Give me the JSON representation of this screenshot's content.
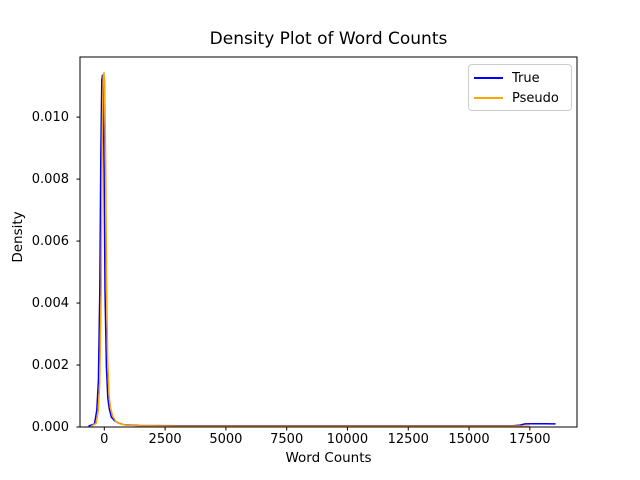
{
  "figure": {
    "background": "#ffffff",
    "spine_color": "#000000",
    "tick_color": "#000000"
  },
  "chart_data": {
    "type": "line",
    "title": "Density Plot of Word Counts",
    "xlabel": "Word Counts",
    "ylabel": "Density",
    "xlim": [
      -1000,
      19440
    ],
    "ylim": [
      0,
      0.01194
    ],
    "grid": false,
    "legend": {
      "position": "upper right",
      "border_color": "#cccccc"
    },
    "xticks": {
      "values": [
        0,
        2500,
        5000,
        7500,
        10000,
        12500,
        15000,
        17500
      ],
      "labels": [
        "0",
        "2500",
        "5000",
        "7500",
        "10000",
        "12500",
        "15000",
        "17500"
      ]
    },
    "yticks": {
      "values": [
        0,
        0.002,
        0.004,
        0.006,
        0.008,
        0.01
      ],
      "labels": [
        "0.000",
        "0.002",
        "0.004",
        "0.006",
        "0.008",
        "0.010"
      ]
    },
    "series": [
      {
        "name": "True",
        "color": "#0000ff",
        "points": [
          [
            -650,
            3e-05
          ],
          [
            -405,
            0.0001
          ],
          [
            -310,
            0.00055
          ],
          [
            -245,
            0.0015
          ],
          [
            -185,
            0.0044
          ],
          [
            -145,
            0.0087
          ],
          [
            -105,
            0.0112
          ],
          [
            -75,
            0.01135
          ],
          [
            -45,
            0.0109
          ],
          [
            -10,
            0.0083
          ],
          [
            30,
            0.0044
          ],
          [
            85,
            0.00195
          ],
          [
            145,
            0.00093
          ],
          [
            205,
            0.00058
          ],
          [
            290,
            0.00032
          ],
          [
            410,
            0.00021
          ],
          [
            575,
            0.00013
          ],
          [
            825,
            7e-05
          ],
          [
            1440,
            5e-05
          ],
          [
            3000,
            4e-05
          ],
          [
            6000,
            4e-05
          ],
          [
            10000,
            4e-05
          ],
          [
            14000,
            4e-05
          ],
          [
            16800,
            4e-05
          ],
          [
            17100,
            6e-05
          ],
          [
            17300,
            0.0001
          ],
          [
            17600,
            0.000105
          ],
          [
            18100,
            0.000105
          ],
          [
            18450,
            0.0001
          ],
          [
            18560,
            0.0001
          ]
        ]
      },
      {
        "name": "Pseudo",
        "color": "#ffa500",
        "points": [
          [
            -535,
            3e-05
          ],
          [
            -330,
            0.00012
          ],
          [
            -250,
            0.0005
          ],
          [
            -190,
            0.0014
          ],
          [
            -130,
            0.0044
          ],
          [
            -85,
            0.0092
          ],
          [
            -45,
            0.0113
          ],
          [
            -15,
            0.01144
          ],
          [
            15,
            0.0111
          ],
          [
            55,
            0.0085
          ],
          [
            95,
            0.0046
          ],
          [
            140,
            0.00215
          ],
          [
            195,
            0.00102
          ],
          [
            255,
            0.00062
          ],
          [
            340,
            0.00036
          ],
          [
            465,
            0.00019
          ],
          [
            630,
            0.00011
          ],
          [
            875,
            6.5e-05
          ],
          [
            1450,
            4e-05
          ],
          [
            3000,
            3e-05
          ],
          [
            6000,
            2.8e-05
          ],
          [
            10000,
            2.8e-05
          ],
          [
            14000,
            2.8e-05
          ],
          [
            17500,
            2.8e-05
          ]
        ]
      }
    ]
  }
}
